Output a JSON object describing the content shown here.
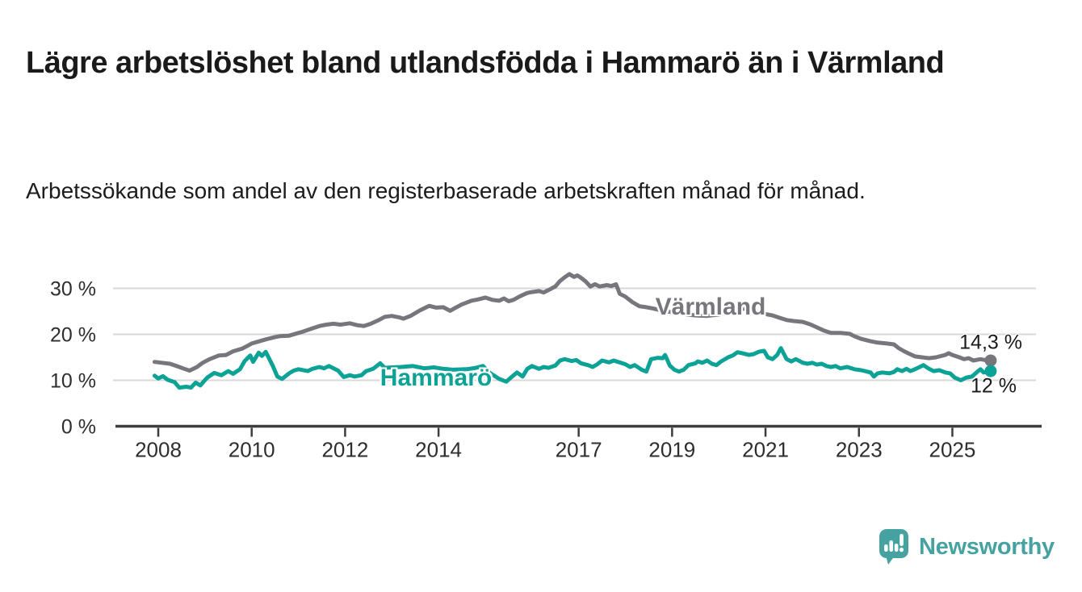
{
  "header": {
    "title": "Lägre arbetslöshet bland utlandsfödda i Hammarö än i Värmland",
    "subtitle": "Arbetssökande som andel av den registerbaserade arbetskraften månad för månad."
  },
  "branding": {
    "logo_icon": "newsworthy-speech-bubble-bar-chart-icon",
    "logo_text": "Newsworthy",
    "logo_color": "#46a2a1"
  },
  "colors": {
    "background": "#ffffff",
    "gridline": "#d8d8d8",
    "axis": "#3d3d3d",
    "tick_label": "#2e2e2e",
    "varmland": "#77767d",
    "hammaro": "#0ca295",
    "end_label_text": "#1a1a1a"
  },
  "chart_data": {
    "type": "line",
    "title": "Lägre arbetslöshet bland utlandsfödda i Hammarö än i Värmland",
    "xlabel": "",
    "ylabel": "",
    "grid": "horizontal",
    "legend_position": "inline-labels-on-lines",
    "xlim": [
      2007.9,
      2026.1
    ],
    "ylim": [
      0,
      35
    ],
    "y_ticks": [
      {
        "value": 0,
        "label": "0 %"
      },
      {
        "value": 10,
        "label": "10 %"
      },
      {
        "value": 20,
        "label": "20 %"
      },
      {
        "value": 30,
        "label": "30 %"
      }
    ],
    "x_ticks": [
      {
        "value": 2008,
        "label": "2008"
      },
      {
        "value": 2010,
        "label": "2010"
      },
      {
        "value": 2012,
        "label": "2012"
      },
      {
        "value": 2014,
        "label": "2014"
      },
      {
        "value": 2017,
        "label": "2017"
      },
      {
        "value": 2019,
        "label": "2019"
      },
      {
        "value": 2021,
        "label": "2021"
      },
      {
        "value": 2023,
        "label": "2023"
      },
      {
        "value": 2025,
        "label": "2025"
      }
    ],
    "series": [
      {
        "name": "Värmland",
        "color": "#77767d",
        "end_label": "14,3 %",
        "end_value": 14.3,
        "points": [
          [
            2007.92,
            14.0
          ],
          [
            2008.08,
            13.8
          ],
          [
            2008.25,
            13.6
          ],
          [
            2008.42,
            13.0
          ],
          [
            2008.58,
            12.4
          ],
          [
            2008.67,
            12.1
          ],
          [
            2008.83,
            12.9
          ],
          [
            2008.95,
            13.8
          ],
          [
            2009.1,
            14.6
          ],
          [
            2009.3,
            15.4
          ],
          [
            2009.45,
            15.5
          ],
          [
            2009.6,
            16.3
          ],
          [
            2009.8,
            16.9
          ],
          [
            2010.0,
            18.0
          ],
          [
            2010.1,
            18.3
          ],
          [
            2010.3,
            18.9
          ],
          [
            2010.5,
            19.4
          ],
          [
            2010.6,
            19.6
          ],
          [
            2010.8,
            19.7
          ],
          [
            2011.0,
            20.3
          ],
          [
            2011.1,
            20.6
          ],
          [
            2011.3,
            21.3
          ],
          [
            2011.45,
            21.8
          ],
          [
            2011.6,
            22.1
          ],
          [
            2011.75,
            22.3
          ],
          [
            2011.9,
            22.1
          ],
          [
            2012.1,
            22.4
          ],
          [
            2012.25,
            22.0
          ],
          [
            2012.4,
            21.8
          ],
          [
            2012.55,
            22.3
          ],
          [
            2012.7,
            23.0
          ],
          [
            2012.85,
            23.8
          ],
          [
            2013.0,
            24.0
          ],
          [
            2013.15,
            23.7
          ],
          [
            2013.25,
            23.4
          ],
          [
            2013.4,
            24.0
          ],
          [
            2013.6,
            25.2
          ],
          [
            2013.8,
            26.2
          ],
          [
            2013.95,
            25.8
          ],
          [
            2014.1,
            25.9
          ],
          [
            2014.25,
            25.1
          ],
          [
            2014.35,
            25.7
          ],
          [
            2014.5,
            26.5
          ],
          [
            2014.7,
            27.3
          ],
          [
            2014.85,
            27.6
          ],
          [
            2015.0,
            28.0
          ],
          [
            2015.15,
            27.5
          ],
          [
            2015.3,
            27.3
          ],
          [
            2015.4,
            27.8
          ],
          [
            2015.5,
            27.2
          ],
          [
            2015.6,
            27.5
          ],
          [
            2015.75,
            28.3
          ],
          [
            2015.9,
            29.0
          ],
          [
            2016.0,
            29.2
          ],
          [
            2016.15,
            29.4
          ],
          [
            2016.25,
            29.1
          ],
          [
            2016.35,
            29.6
          ],
          [
            2016.5,
            30.4
          ],
          [
            2016.6,
            31.6
          ],
          [
            2016.7,
            32.4
          ],
          [
            2016.8,
            33.1
          ],
          [
            2016.9,
            32.5
          ],
          [
            2016.97,
            32.8
          ],
          [
            2017.05,
            32.3
          ],
          [
            2017.15,
            31.5
          ],
          [
            2017.25,
            30.4
          ],
          [
            2017.35,
            30.9
          ],
          [
            2017.45,
            30.4
          ],
          [
            2017.6,
            30.7
          ],
          [
            2017.7,
            30.5
          ],
          [
            2017.8,
            30.9
          ],
          [
            2017.88,
            28.8
          ],
          [
            2018.0,
            28.2
          ],
          [
            2018.15,
            27.0
          ],
          [
            2018.3,
            26.1
          ],
          [
            2018.45,
            25.9
          ],
          [
            2018.6,
            25.6
          ],
          [
            2018.8,
            25.1
          ],
          [
            2019.0,
            24.8
          ],
          [
            2019.25,
            24.4
          ],
          [
            2019.5,
            24.1
          ],
          [
            2019.75,
            24.0
          ],
          [
            2020.0,
            24.3
          ],
          [
            2020.3,
            25.1
          ],
          [
            2020.55,
            25.6
          ],
          [
            2020.8,
            25.0
          ],
          [
            2021.0,
            24.4
          ],
          [
            2021.15,
            24.1
          ],
          [
            2021.3,
            23.6
          ],
          [
            2021.45,
            23.1
          ],
          [
            2021.6,
            22.9
          ],
          [
            2021.8,
            22.7
          ],
          [
            2021.95,
            22.2
          ],
          [
            2022.1,
            21.5
          ],
          [
            2022.25,
            20.8
          ],
          [
            2022.4,
            20.3
          ],
          [
            2022.6,
            20.3
          ],
          [
            2022.8,
            20.1
          ],
          [
            2022.9,
            19.6
          ],
          [
            2023.05,
            19.0
          ],
          [
            2023.25,
            18.5
          ],
          [
            2023.4,
            18.2
          ],
          [
            2023.6,
            18.0
          ],
          [
            2023.75,
            17.8
          ],
          [
            2023.85,
            17.0
          ],
          [
            2023.95,
            16.4
          ],
          [
            2024.05,
            15.9
          ],
          [
            2024.2,
            15.2
          ],
          [
            2024.35,
            15.0
          ],
          [
            2024.5,
            14.8
          ],
          [
            2024.65,
            15.0
          ],
          [
            2024.85,
            15.5
          ],
          [
            2024.92,
            15.9
          ],
          [
            2025.0,
            15.5
          ],
          [
            2025.15,
            15.0
          ],
          [
            2025.25,
            14.6
          ],
          [
            2025.35,
            14.8
          ],
          [
            2025.45,
            14.3
          ],
          [
            2025.6,
            14.6
          ],
          [
            2025.7,
            14.4
          ],
          [
            2025.82,
            14.3
          ]
        ]
      },
      {
        "name": "Hammarö",
        "color": "#0ca295",
        "end_label": "12 %",
        "end_value": 12,
        "points": [
          [
            2007.92,
            11.0
          ],
          [
            2008.0,
            10.4
          ],
          [
            2008.1,
            10.9
          ],
          [
            2008.2,
            10.1
          ],
          [
            2008.35,
            9.6
          ],
          [
            2008.45,
            8.4
          ],
          [
            2008.6,
            8.6
          ],
          [
            2008.7,
            8.4
          ],
          [
            2008.8,
            9.5
          ],
          [
            2008.9,
            8.9
          ],
          [
            2009.05,
            10.6
          ],
          [
            2009.2,
            11.6
          ],
          [
            2009.35,
            11.1
          ],
          [
            2009.5,
            12.0
          ],
          [
            2009.6,
            11.4
          ],
          [
            2009.75,
            12.4
          ],
          [
            2009.85,
            14.2
          ],
          [
            2009.97,
            15.4
          ],
          [
            2010.03,
            14.0
          ],
          [
            2010.15,
            16.0
          ],
          [
            2010.22,
            15.3
          ],
          [
            2010.3,
            16.2
          ],
          [
            2010.45,
            13.2
          ],
          [
            2010.55,
            10.8
          ],
          [
            2010.65,
            10.3
          ],
          [
            2010.8,
            11.5
          ],
          [
            2010.9,
            12.1
          ],
          [
            2011.0,
            12.4
          ],
          [
            2011.2,
            12.0
          ],
          [
            2011.3,
            12.5
          ],
          [
            2011.45,
            12.9
          ],
          [
            2011.55,
            12.6
          ],
          [
            2011.65,
            13.1
          ],
          [
            2011.85,
            12.1
          ],
          [
            2011.97,
            10.7
          ],
          [
            2012.1,
            11.1
          ],
          [
            2012.2,
            10.8
          ],
          [
            2012.35,
            11.1
          ],
          [
            2012.45,
            12.0
          ],
          [
            2012.6,
            12.5
          ],
          [
            2012.75,
            13.7
          ],
          [
            2012.85,
            12.7
          ],
          [
            2013.0,
            12.8
          ],
          [
            2013.2,
            12.9
          ],
          [
            2013.45,
            13.1
          ],
          [
            2013.7,
            12.6
          ],
          [
            2013.9,
            12.8
          ],
          [
            2014.1,
            12.5
          ],
          [
            2014.3,
            12.3
          ],
          [
            2014.6,
            12.4
          ],
          [
            2014.8,
            12.7
          ],
          [
            2014.95,
            13.1
          ],
          [
            2015.1,
            11.6
          ],
          [
            2015.3,
            10.3
          ],
          [
            2015.45,
            9.7
          ],
          [
            2015.55,
            10.6
          ],
          [
            2015.68,
            11.7
          ],
          [
            2015.8,
            10.8
          ],
          [
            2015.9,
            12.5
          ],
          [
            2016.0,
            13.1
          ],
          [
            2016.15,
            12.5
          ],
          [
            2016.25,
            12.9
          ],
          [
            2016.35,
            12.7
          ],
          [
            2016.5,
            13.2
          ],
          [
            2016.6,
            14.3
          ],
          [
            2016.7,
            14.6
          ],
          [
            2016.85,
            14.2
          ],
          [
            2016.95,
            14.4
          ],
          [
            2017.05,
            13.7
          ],
          [
            2017.2,
            13.3
          ],
          [
            2017.3,
            12.9
          ],
          [
            2017.4,
            13.5
          ],
          [
            2017.5,
            14.3
          ],
          [
            2017.65,
            13.9
          ],
          [
            2017.75,
            14.3
          ],
          [
            2017.9,
            13.8
          ],
          [
            2018.0,
            13.5
          ],
          [
            2018.1,
            12.9
          ],
          [
            2018.2,
            13.3
          ],
          [
            2018.35,
            12.3
          ],
          [
            2018.45,
            11.9
          ],
          [
            2018.55,
            14.6
          ],
          [
            2018.7,
            14.9
          ],
          [
            2018.8,
            14.8
          ],
          [
            2018.85,
            15.5
          ],
          [
            2018.95,
            13.2
          ],
          [
            2019.05,
            12.3
          ],
          [
            2019.15,
            11.9
          ],
          [
            2019.25,
            12.3
          ],
          [
            2019.35,
            13.3
          ],
          [
            2019.5,
            13.7
          ],
          [
            2019.55,
            14.1
          ],
          [
            2019.65,
            13.8
          ],
          [
            2019.75,
            14.3
          ],
          [
            2019.85,
            13.6
          ],
          [
            2019.95,
            13.3
          ],
          [
            2020.05,
            14.1
          ],
          [
            2020.2,
            15.0
          ],
          [
            2020.3,
            15.4
          ],
          [
            2020.4,
            16.1
          ],
          [
            2020.5,
            15.9
          ],
          [
            2020.65,
            15.5
          ],
          [
            2020.75,
            15.7
          ],
          [
            2020.85,
            16.2
          ],
          [
            2020.97,
            16.4
          ],
          [
            2021.05,
            15.0
          ],
          [
            2021.15,
            14.6
          ],
          [
            2021.25,
            15.5
          ],
          [
            2021.33,
            17.0
          ],
          [
            2021.45,
            14.6
          ],
          [
            2021.55,
            14.1
          ],
          [
            2021.65,
            14.6
          ],
          [
            2021.8,
            13.8
          ],
          [
            2021.9,
            13.6
          ],
          [
            2022.0,
            13.8
          ],
          [
            2022.1,
            13.4
          ],
          [
            2022.2,
            13.6
          ],
          [
            2022.3,
            13.1
          ],
          [
            2022.4,
            12.9
          ],
          [
            2022.5,
            13.1
          ],
          [
            2022.6,
            12.6
          ],
          [
            2022.75,
            12.9
          ],
          [
            2022.9,
            12.4
          ],
          [
            2023.05,
            12.2
          ],
          [
            2023.25,
            11.7
          ],
          [
            2023.32,
            10.8
          ],
          [
            2023.4,
            11.5
          ],
          [
            2023.5,
            11.7
          ],
          [
            2023.65,
            11.5
          ],
          [
            2023.75,
            11.8
          ],
          [
            2023.82,
            12.4
          ],
          [
            2023.92,
            12.0
          ],
          [
            2024.02,
            12.5
          ],
          [
            2024.1,
            12.0
          ],
          [
            2024.2,
            12.4
          ],
          [
            2024.3,
            12.9
          ],
          [
            2024.38,
            13.3
          ],
          [
            2024.5,
            12.5
          ],
          [
            2024.6,
            12.0
          ],
          [
            2024.72,
            12.2
          ],
          [
            2024.85,
            11.7
          ],
          [
            2024.95,
            11.5
          ],
          [
            2025.05,
            10.6
          ],
          [
            2025.18,
            10.0
          ],
          [
            2025.3,
            10.6
          ],
          [
            2025.42,
            10.8
          ],
          [
            2025.55,
            12.0
          ],
          [
            2025.6,
            12.4
          ],
          [
            2025.67,
            11.7
          ],
          [
            2025.82,
            12.0
          ]
        ]
      }
    ]
  }
}
